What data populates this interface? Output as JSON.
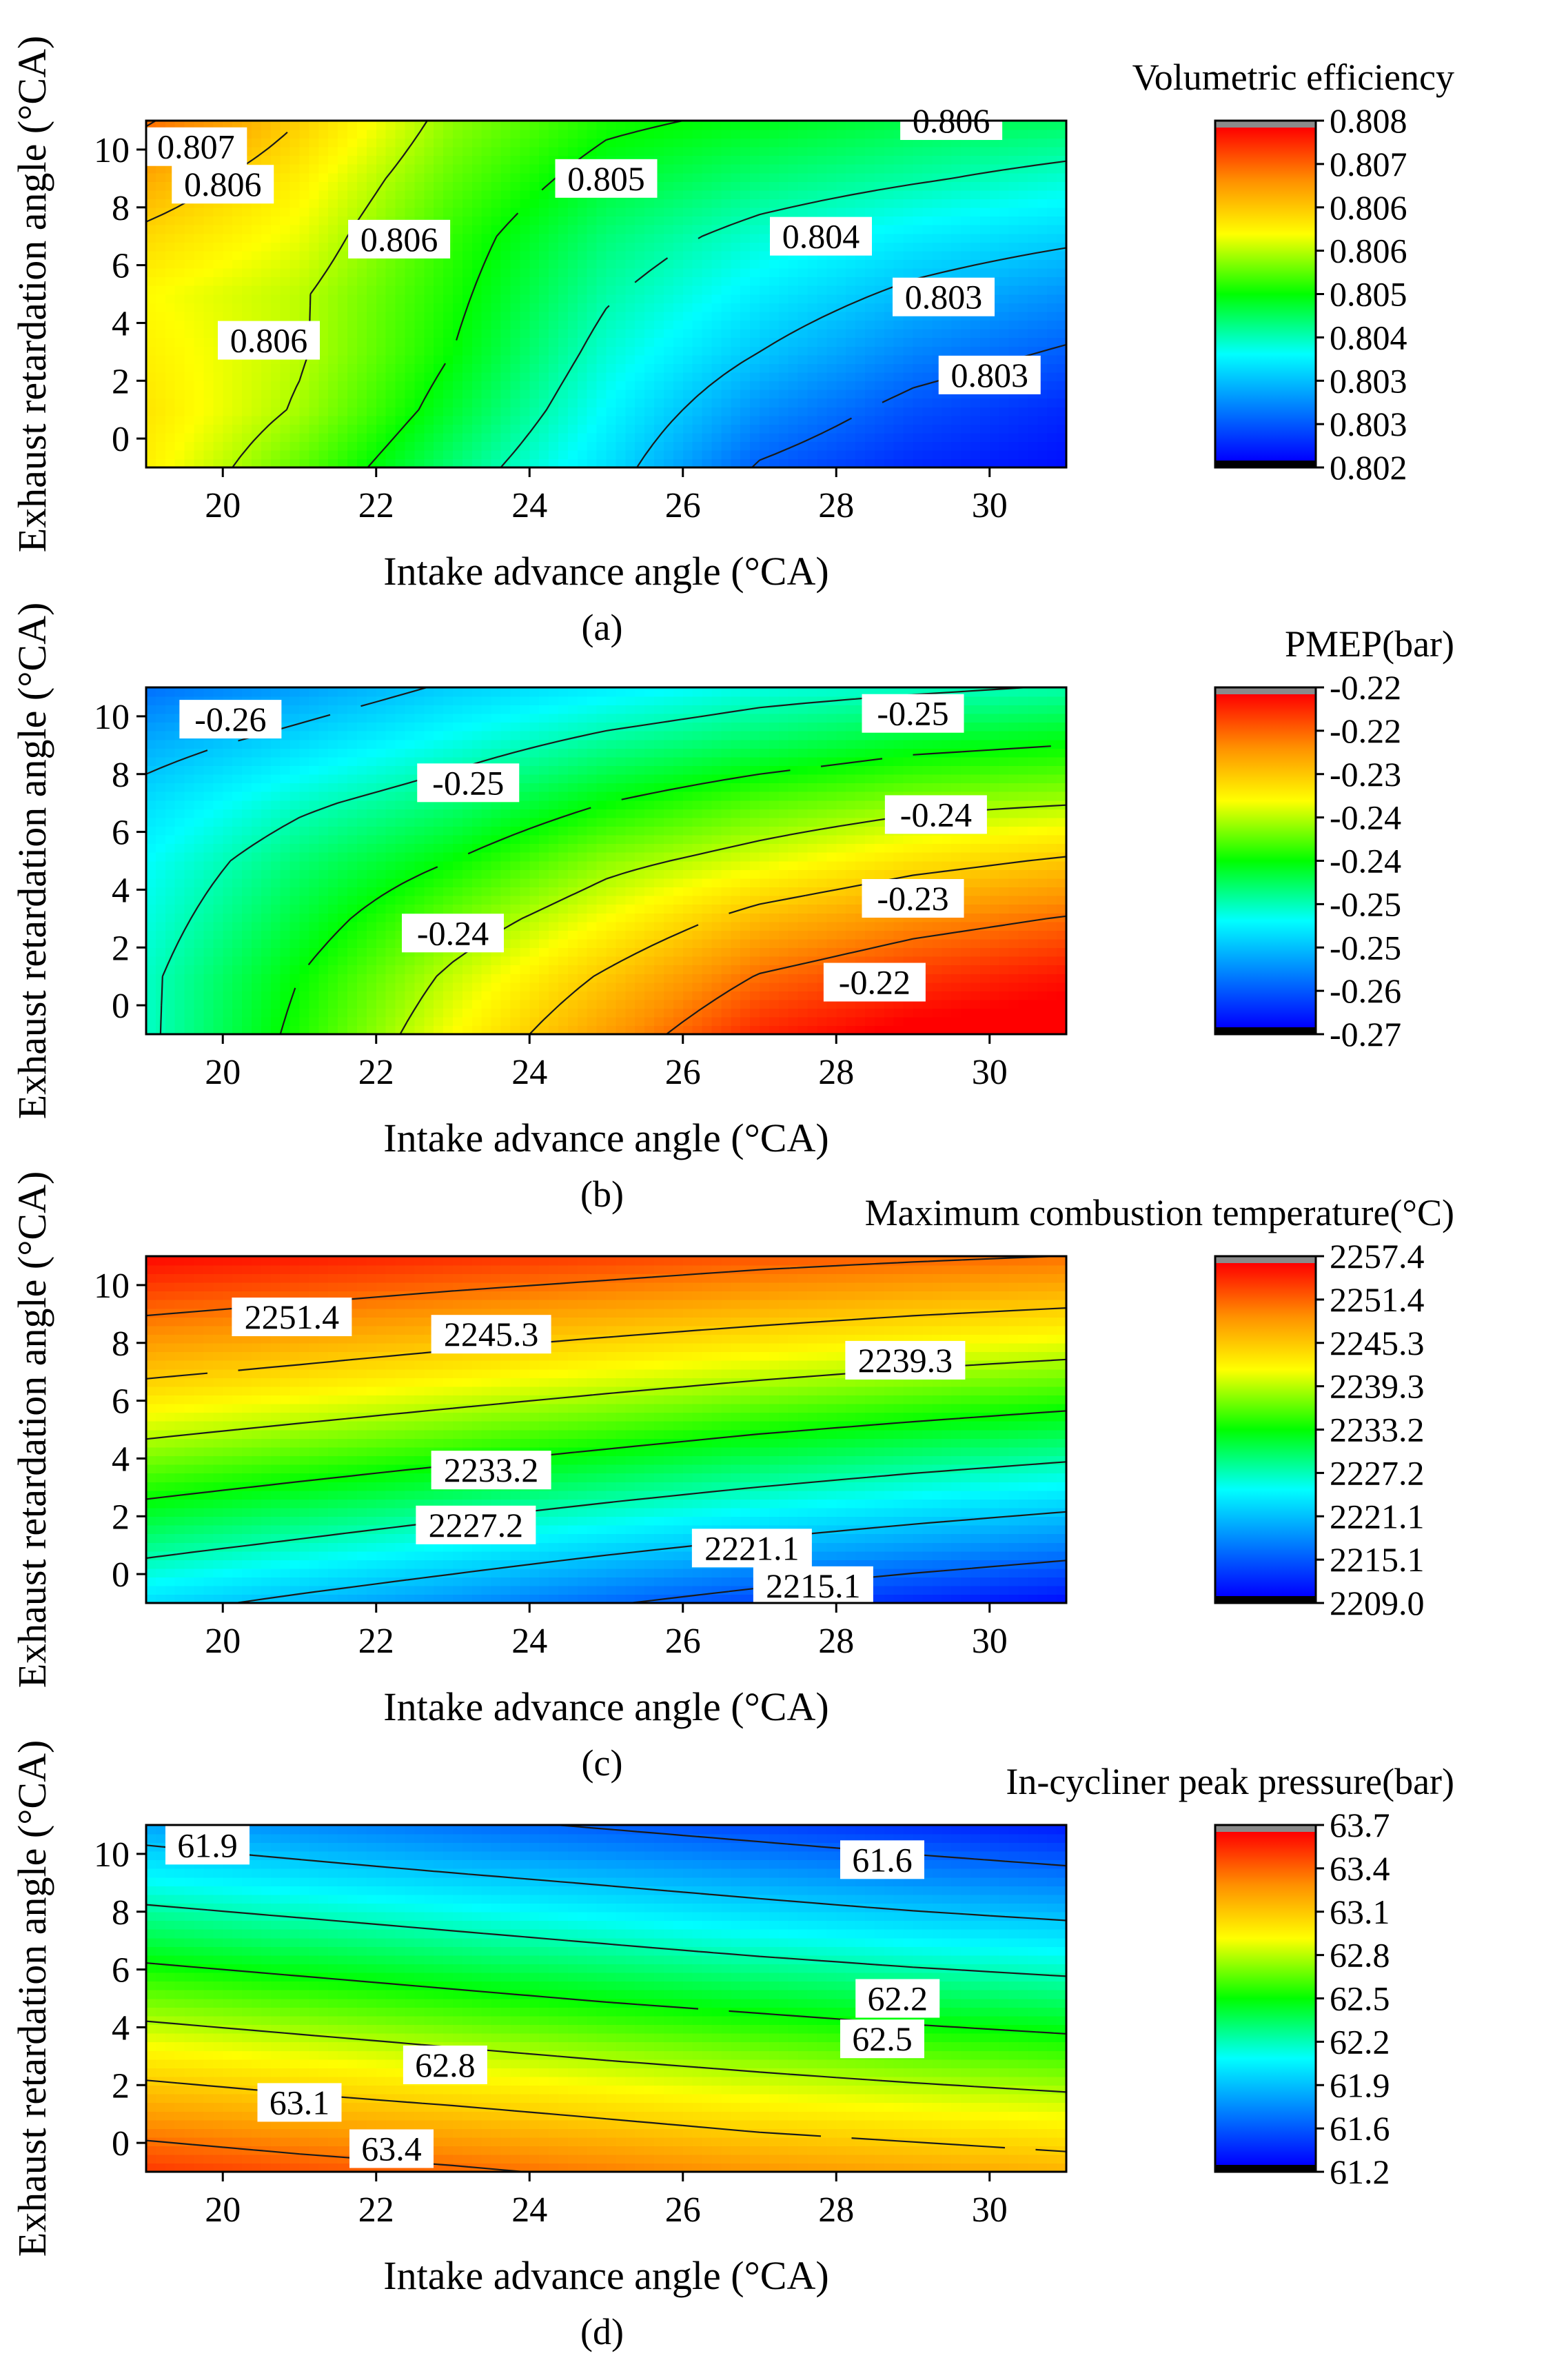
{
  "figure": {
    "caption_count": 4
  },
  "chart_data": [
    {
      "type": "heatmap",
      "panel": "a",
      "caption": "(a)",
      "title": "Volumetric efficiency",
      "xlabel": "Intake advance angle (°CA)",
      "ylabel": "Exhaust retardation angle (°CA)",
      "xlim": [
        19,
        31
      ],
      "ylim": [
        -1,
        11
      ],
      "xticks": [
        "20",
        "22",
        "24",
        "26",
        "28",
        "30"
      ],
      "yticks": [
        "0",
        "2",
        "4",
        "6",
        "8",
        "10"
      ],
      "x": [
        19,
        21,
        23,
        25,
        27,
        29,
        31
      ],
      "y": [
        -1,
        1,
        3,
        5,
        7,
        9,
        11
      ],
      "z": [
        [
          0.8062,
          0.8054,
          0.8045,
          0.8037,
          0.8027,
          0.8023,
          0.8021
        ],
        [
          0.8063,
          0.8057,
          0.8048,
          0.8039,
          0.8031,
          0.8026,
          0.8023
        ],
        [
          0.8062,
          0.8058,
          0.805,
          0.8041,
          0.8035,
          0.803,
          0.8027
        ],
        [
          0.8061,
          0.8058,
          0.8051,
          0.8043,
          0.8038,
          0.8034,
          0.8031
        ],
        [
          0.8064,
          0.806,
          0.8052,
          0.8045,
          0.8041,
          0.8038,
          0.8036
        ],
        [
          0.8068,
          0.8062,
          0.8054,
          0.8048,
          0.8045,
          0.8043,
          0.8041
        ],
        [
          0.8073,
          0.8065,
          0.8056,
          0.8051,
          0.8049,
          0.8047,
          0.8046
        ]
      ],
      "zlim": [
        0.802,
        0.808
      ],
      "colorbar_labels": [
        "0.808",
        "0.807",
        "0.806",
        "0.806",
        "0.805",
        "0.804",
        "0.803",
        "0.803",
        "0.802"
      ],
      "contour_labels": [
        {
          "text": "0.807",
          "x": 19.65,
          "y": 10.1
        },
        {
          "text": "0.806",
          "x": 20.0,
          "y": 8.8
        },
        {
          "text": "0.806",
          "x": 22.3,
          "y": 6.9
        },
        {
          "text": "0.806",
          "x": 20.6,
          "y": 3.4
        },
        {
          "text": "0.805",
          "x": 25.0,
          "y": 9.0
        },
        {
          "text": "0.804",
          "x": 27.8,
          "y": 7.0
        },
        {
          "text": "0.803",
          "x": 29.4,
          "y": 4.9
        },
        {
          "text": "0.803",
          "x": 30.0,
          "y": 2.2
        },
        {
          "text": "0.806",
          "x": 29.5,
          "y": 11.0
        }
      ]
    },
    {
      "type": "heatmap",
      "panel": "b",
      "caption": "(b)",
      "title": "PMEP(bar)",
      "xlabel": "Intake advance angle (°CA)",
      "ylabel": "Exhaust retardation angle (°CA)",
      "xlim": [
        19,
        31
      ],
      "ylim": [
        -1,
        11
      ],
      "xticks": [
        "20",
        "22",
        "24",
        "26",
        "28",
        "30"
      ],
      "yticks": [
        "0",
        "2",
        "4",
        "6",
        "8",
        "10"
      ],
      "x": [
        19,
        21,
        23,
        25,
        27,
        29,
        31
      ],
      "y": [
        -1,
        1,
        3,
        5,
        7,
        9,
        11
      ],
      "z": [
        [
          -0.252,
          -0.244,
          -0.236,
          -0.229,
          -0.222,
          -0.219,
          -0.218
        ],
        [
          -0.252,
          -0.245,
          -0.238,
          -0.232,
          -0.226,
          -0.223,
          -0.221
        ],
        [
          -0.253,
          -0.247,
          -0.241,
          -0.236,
          -0.231,
          -0.228,
          -0.226
        ],
        [
          -0.254,
          -0.249,
          -0.245,
          -0.24,
          -0.237,
          -0.234,
          -0.232
        ],
        [
          -0.256,
          -0.252,
          -0.249,
          -0.245,
          -0.242,
          -0.24,
          -0.239
        ],
        [
          -0.259,
          -0.256,
          -0.253,
          -0.25,
          -0.248,
          -0.246,
          -0.245
        ],
        [
          -0.263,
          -0.26,
          -0.257,
          -0.255,
          -0.253,
          -0.252,
          -0.251
        ]
      ],
      "zlim": [
        -0.27,
        -0.22
      ],
      "colorbar_labels": [
        "-0.22",
        "-0.22",
        "-0.23",
        "-0.24",
        "-0.24",
        "-0.25",
        "-0.25",
        "-0.26",
        "-0.27"
      ],
      "contour_labels": [
        {
          "text": "-0.26",
          "x": 20.1,
          "y": 9.9
        },
        {
          "text": "-0.25",
          "x": 29.0,
          "y": 10.1
        },
        {
          "text": "-0.25",
          "x": 23.2,
          "y": 7.7
        },
        {
          "text": "-0.24",
          "x": 29.3,
          "y": 6.6
        },
        {
          "text": "-0.23",
          "x": 29.0,
          "y": 3.7
        },
        {
          "text": "-0.24",
          "x": 23.0,
          "y": 2.5
        },
        {
          "text": "-0.22",
          "x": 28.5,
          "y": 0.8
        }
      ]
    },
    {
      "type": "heatmap",
      "panel": "c",
      "caption": "(c)",
      "title": "Maximum combustion temperature(°C)",
      "xlabel": "Intake advance angle (°CA)",
      "ylabel": "Exhaust retardation angle (°CA)",
      "xlim": [
        19,
        31
      ],
      "ylim": [
        -1,
        11
      ],
      "xticks": [
        "20",
        "22",
        "24",
        "26",
        "28",
        "30"
      ],
      "yticks": [
        "0",
        "2",
        "4",
        "6",
        "8",
        "10"
      ],
      "x": [
        19,
        21,
        23,
        25,
        27,
        29,
        31
      ],
      "y": [
        -1,
        1,
        3,
        5,
        7,
        9,
        11
      ],
      "z": [
        [
          2222.5,
          2220.1,
          2217.8,
          2215.4,
          2213.2,
          2211.3,
          2209.6
        ],
        [
          2228.5,
          2226.5,
          2224.4,
          2222.3,
          2220.3,
          2218.6,
          2217.0
        ],
        [
          2234.4,
          2232.6,
          2230.8,
          2228.9,
          2227.1,
          2225.5,
          2224.1
        ],
        [
          2240.2,
          2238.6,
          2237.0,
          2235.4,
          2233.7,
          2232.3,
          2231.0
        ],
        [
          2246.0,
          2244.6,
          2243.1,
          2241.6,
          2240.2,
          2238.9,
          2237.8
        ],
        [
          2251.5,
          2250.3,
          2249.0,
          2247.8,
          2246.6,
          2245.5,
          2244.6
        ],
        [
          2257.0,
          2256.0,
          2254.9,
          2253.9,
          2252.8,
          2252.0,
          2251.3
        ]
      ],
      "zlim": [
        2209.0,
        2257.4
      ],
      "colorbar_labels": [
        "2257.4",
        "2251.4",
        "2245.3",
        "2239.3",
        "2233.2",
        "2227.2",
        "2221.1",
        "2215.1",
        "2209.0"
      ],
      "contour_labels": [
        {
          "text": "2251.4",
          "x": 20.9,
          "y": 8.9
        },
        {
          "text": "2245.3",
          "x": 23.5,
          "y": 8.3
        },
        {
          "text": "2239.3",
          "x": 28.9,
          "y": 7.4
        },
        {
          "text": "2233.2",
          "x": 23.5,
          "y": 3.6
        },
        {
          "text": "2227.2",
          "x": 23.3,
          "y": 1.7
        },
        {
          "text": "2221.1",
          "x": 26.9,
          "y": 0.9
        },
        {
          "text": "2215.1",
          "x": 27.7,
          "y": -0.4
        }
      ]
    },
    {
      "type": "heatmap",
      "panel": "d",
      "caption": "(d)",
      "title": "In-cycliner peak pressure(bar)",
      "xlabel": "Intake advance angle (°CA)",
      "ylabel": "Exhaust retardation angle (°CA)",
      "xlim": [
        19,
        31
      ],
      "ylim": [
        -1,
        11
      ],
      "xticks": [
        "20",
        "22",
        "24",
        "26",
        "28",
        "30"
      ],
      "yticks": [
        "0",
        "2",
        "4",
        "6",
        "8",
        "10"
      ],
      "x": [
        19,
        21,
        23,
        25,
        27,
        29,
        31
      ],
      "y": [
        -1,
        1,
        3,
        5,
        7,
        9,
        11
      ],
      "z": [
        [
          63.55,
          63.48,
          63.42,
          63.35,
          63.28,
          63.23,
          63.18
        ],
        [
          63.25,
          63.18,
          63.12,
          63.05,
          62.98,
          62.93,
          62.88
        ],
        [
          62.95,
          62.88,
          62.81,
          62.74,
          62.68,
          62.62,
          62.57
        ],
        [
          62.64,
          62.57,
          62.5,
          62.43,
          62.37,
          62.31,
          62.26
        ],
        [
          62.33,
          62.26,
          62.19,
          62.12,
          62.05,
          61.99,
          61.94
        ],
        [
          62.02,
          61.95,
          61.88,
          61.81,
          61.74,
          61.67,
          61.61
        ],
        [
          61.72,
          61.64,
          61.56,
          61.49,
          61.42,
          61.35,
          61.28
        ]
      ],
      "zlim": [
        61.2,
        63.7
      ],
      "colorbar_labels": [
        "63.7",
        "63.4",
        "63.1",
        "62.8",
        "62.5",
        "62.2",
        "61.9",
        "61.6",
        "61.2"
      ],
      "contour_labels": [
        {
          "text": "61.9",
          "x": 19.8,
          "y": 10.3
        },
        {
          "text": "61.6",
          "x": 28.6,
          "y": 9.8
        },
        {
          "text": "62.2",
          "x": 28.8,
          "y": 5.0
        },
        {
          "text": "62.5",
          "x": 28.6,
          "y": 3.6
        },
        {
          "text": "62.8",
          "x": 22.9,
          "y": 2.7
        },
        {
          "text": "63.1",
          "x": 21.0,
          "y": 1.4
        },
        {
          "text": "63.4",
          "x": 22.2,
          "y": -0.2
        }
      ]
    }
  ]
}
